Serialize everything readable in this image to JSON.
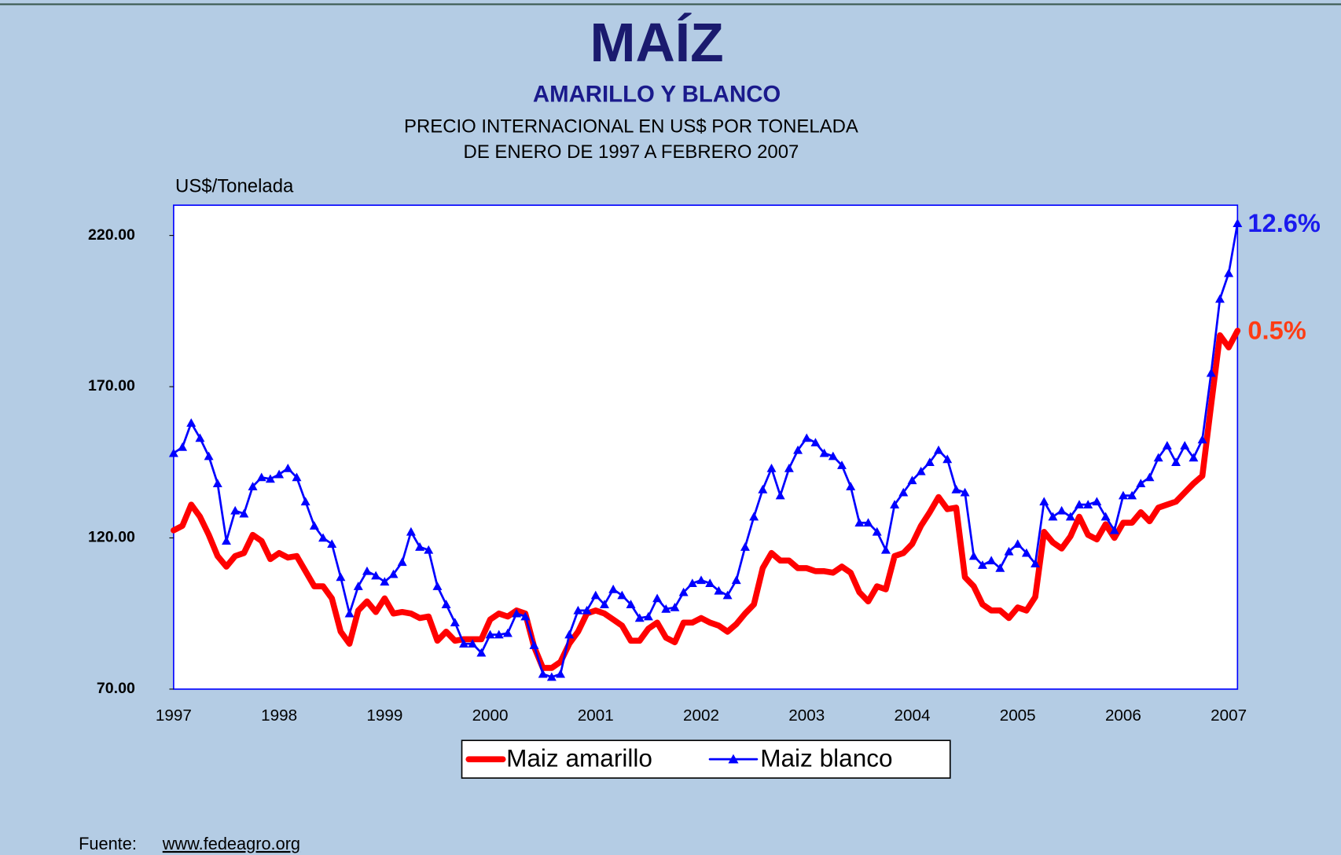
{
  "chart_data": {
    "type": "line",
    "title": "MAÍZ",
    "subtitle": "AMARILLO Y BLANCO",
    "description": [
      "PRECIO INTERNACIONAL EN US$  POR TONELADA",
      "DE ENERO DE 1997  A  FEBRERO 2007"
    ],
    "y_label": "US$/Tonelada",
    "categories": [
      "1997",
      null,
      null,
      null,
      null,
      null,
      null,
      null,
      null,
      null,
      null,
      null,
      "1998",
      null,
      null,
      null,
      null,
      null,
      null,
      null,
      null,
      null,
      null,
      null,
      "1999",
      null,
      null,
      null,
      null,
      null,
      null,
      null,
      null,
      null,
      null,
      null,
      "2000",
      null,
      null,
      null,
      null,
      null,
      null,
      null,
      null,
      null,
      null,
      null,
      "2001",
      null,
      null,
      null,
      null,
      null,
      null,
      null,
      null,
      null,
      null,
      null,
      "2002",
      null,
      null,
      null,
      null,
      null,
      null,
      null,
      null,
      null,
      null,
      null,
      "2003",
      null,
      null,
      null,
      null,
      null,
      null,
      null,
      null,
      null,
      null,
      null,
      "2004",
      null,
      null,
      null,
      null,
      null,
      null,
      null,
      null,
      null,
      null,
      null,
      "2005",
      null,
      null,
      null,
      null,
      null,
      null,
      null,
      null,
      null,
      null,
      null,
      "2006",
      null,
      null,
      null,
      null,
      null,
      null,
      null,
      null,
      null,
      null,
      null,
      "2007",
      null
    ],
    "series": [
      {
        "name": "Maiz amarillo",
        "color": "#ff0000",
        "marker": "none",
        "end_label": "0.5%",
        "end_label_color": "#ff3c14",
        "values": [
          122.5,
          124,
          131,
          127,
          121,
          114,
          110.5,
          114,
          115,
          121,
          119,
          113,
          115,
          113.5,
          114,
          109,
          104,
          104,
          100,
          89,
          85,
          96,
          99,
          95.5,
          100,
          95,
          95.5,
          95,
          93.5,
          94,
          86,
          89,
          86,
          86.5,
          86.5,
          86.5,
          93,
          95,
          94,
          96,
          95,
          84,
          77,
          77,
          79,
          85,
          89,
          95,
          96,
          95,
          93,
          91,
          86,
          86,
          90,
          92,
          87,
          85.5,
          92,
          92,
          93.5,
          92,
          91,
          89,
          91.5,
          95,
          98,
          110,
          115,
          112.5,
          112.5,
          110,
          110,
          109,
          109,
          108.5,
          110.5,
          108.5,
          102,
          99,
          104,
          103,
          114,
          115,
          118,
          124,
          128.5,
          133.5,
          129.5,
          130,
          107,
          104,
          98,
          96,
          96,
          93.5,
          97,
          96,
          100.5,
          122,
          118.5,
          116.5,
          120.5,
          127,
          121,
          119.5,
          124.5,
          120,
          125,
          125,
          128.5,
          125.5,
          130,
          131,
          132,
          135,
          138,
          140.5,
          164,
          187,
          183,
          188.5
        ]
      },
      {
        "name": "Maiz blanco",
        "color": "#0000ff",
        "marker": "triangle",
        "end_label": "12.6%",
        "end_label_color": "#1a1aee",
        "values": [
          148,
          150,
          158,
          153,
          147,
          138,
          119,
          129,
          128,
          137,
          140,
          139.5,
          141,
          143,
          140,
          132,
          124,
          120,
          118,
          107,
          95,
          104,
          109,
          107.5,
          105.5,
          108,
          112,
          122,
          117,
          116,
          104,
          98,
          92,
          85,
          85,
          82,
          88,
          88,
          88.5,
          95,
          94,
          84.5,
          75,
          74,
          75,
          88,
          96,
          96,
          101,
          98,
          103,
          101,
          98,
          93.5,
          94,
          100,
          96.5,
          97,
          102,
          105,
          106,
          105,
          102.5,
          101,
          106,
          117,
          127,
          136,
          143,
          134,
          143,
          149,
          153,
          151.5,
          148,
          147,
          144,
          137,
          125,
          125,
          122,
          116,
          131,
          135,
          139,
          142,
          145,
          149,
          146,
          136,
          135,
          114,
          111,
          112.5,
          110,
          115.5,
          118,
          115,
          111.5,
          132,
          127,
          129,
          127,
          131,
          131,
          132,
          127,
          122.5,
          134,
          134,
          138,
          140,
          146.5,
          150.5,
          145,
          150.5,
          146.5,
          152.5,
          174.5,
          199,
          207.5,
          224
        ]
      }
    ],
    "ylim": [
      70,
      230
    ],
    "yticks": [
      {
        "value": 70,
        "label": "70.00"
      },
      {
        "value": 120,
        "label": "120.00"
      },
      {
        "value": 170,
        "label": "170.00"
      },
      {
        "value": 220,
        "label": "220.00"
      }
    ],
    "grid": false,
    "legend": "bottom",
    "source": {
      "prefix": "Fuente:",
      "link": "www.fedeagro.org"
    }
  }
}
